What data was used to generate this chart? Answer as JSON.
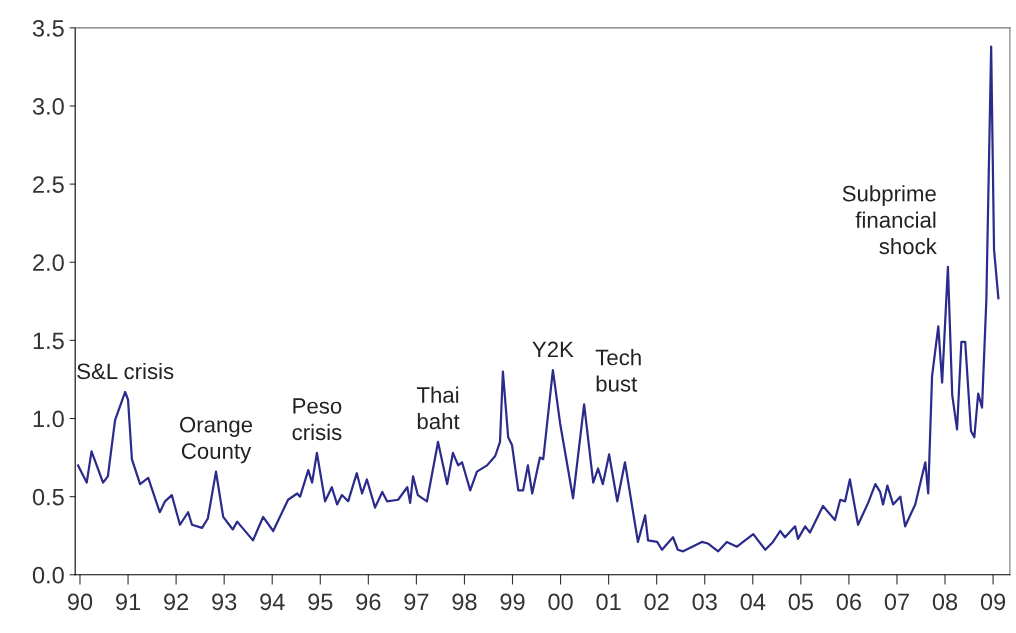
{
  "chart_data": {
    "type": "line",
    "x": [
      1989.96,
      1990.14,
      1990.24,
      1990.48,
      1990.58,
      1990.73,
      1990.94,
      1991.0,
      1991.08,
      1991.25,
      1991.42,
      1991.66,
      1991.77,
      1991.91,
      1992.08,
      1992.25,
      1992.33,
      1992.54,
      1992.66,
      1992.83,
      1992.98,
      1993.18,
      1993.27,
      1993.6,
      1993.81,
      1994.02,
      1994.33,
      1994.52,
      1994.58,
      1994.75,
      1994.83,
      1994.93,
      1995.1,
      1995.24,
      1995.35,
      1995.45,
      1995.58,
      1995.76,
      1995.87,
      1995.97,
      1996.14,
      1996.29,
      1996.39,
      1996.62,
      1996.81,
      1996.87,
      1996.93,
      1997.03,
      1997.22,
      1997.45,
      1997.64,
      1997.76,
      1997.87,
      1997.95,
      1998.12,
      1998.26,
      1998.47,
      1998.64,
      1998.74,
      1998.8,
      1998.91,
      1998.99,
      1999.12,
      1999.22,
      1999.32,
      1999.41,
      1999.57,
      1999.64,
      1999.84,
      1999.99,
      2000.26,
      2000.49,
      2000.68,
      2000.78,
      2000.88,
      2001.01,
      2001.18,
      2001.34,
      2001.61,
      2001.76,
      2001.82,
      2002.01,
      2002.11,
      2002.34,
      2002.44,
      2002.55,
      2002.94,
      2003.07,
      2003.28,
      2003.46,
      2003.67,
      2004.01,
      2004.26,
      2004.42,
      2004.57,
      2004.67,
      2004.88,
      2004.94,
      2005.09,
      2005.19,
      2005.46,
      2005.71,
      2005.82,
      2005.92,
      2006.02,
      2006.19,
      2006.4,
      2006.55,
      2006.65,
      2006.71,
      2006.8,
      2006.92,
      2007.07,
      2007.17,
      2007.38,
      2007.59,
      2007.65,
      2007.73,
      2007.86,
      2007.94,
      2008.06,
      2008.15,
      2008.25,
      2008.34,
      2008.42,
      2008.54,
      2008.61,
      2008.69,
      2008.77,
      2008.86,
      2008.96,
      2009.02,
      2009.11
    ],
    "series": [
      {
        "color": "#2b2b8c",
        "values": [
          0.7,
          0.59,
          0.79,
          0.59,
          0.63,
          0.99,
          1.17,
          1.12,
          0.74,
          0.58,
          0.62,
          0.4,
          0.47,
          0.51,
          0.32,
          0.4,
          0.32,
          0.3,
          0.36,
          0.66,
          0.37,
          0.29,
          0.34,
          0.22,
          0.37,
          0.28,
          0.48,
          0.52,
          0.5,
          0.67,
          0.59,
          0.78,
          0.47,
          0.56,
          0.45,
          0.51,
          0.47,
          0.65,
          0.52,
          0.61,
          0.43,
          0.53,
          0.47,
          0.48,
          0.56,
          0.46,
          0.63,
          0.51,
          0.47,
          0.85,
          0.58,
          0.78,
          0.7,
          0.72,
          0.54,
          0.66,
          0.7,
          0.76,
          0.85,
          1.3,
          0.88,
          0.83,
          0.54,
          0.54,
          0.7,
          0.52,
          0.75,
          0.74,
          1.31,
          0.97,
          0.49,
          1.09,
          0.59,
          0.68,
          0.58,
          0.77,
          0.47,
          0.72,
          0.21,
          0.38,
          0.22,
          0.21,
          0.16,
          0.24,
          0.16,
          0.15,
          0.21,
          0.2,
          0.15,
          0.21,
          0.18,
          0.26,
          0.16,
          0.21,
          0.28,
          0.24,
          0.31,
          0.23,
          0.31,
          0.27,
          0.44,
          0.35,
          0.48,
          0.47,
          0.61,
          0.32,
          0.46,
          0.58,
          0.53,
          0.45,
          0.57,
          0.45,
          0.5,
          0.31,
          0.45,
          0.72,
          0.52,
          1.27,
          1.59,
          1.23,
          1.97,
          1.15,
          0.93,
          1.49,
          1.49,
          0.92,
          0.88,
          1.16,
          1.07,
          1.76,
          3.38,
          2.08,
          1.77
        ]
      }
    ],
    "xlim": [
      1989.9,
      2009.35
    ],
    "xticks": [
      {
        "value": 1990,
        "label": "90"
      },
      {
        "value": 1991,
        "label": "91"
      },
      {
        "value": 1992,
        "label": "92"
      },
      {
        "value": 1993,
        "label": "93"
      },
      {
        "value": 1994,
        "label": "94"
      },
      {
        "value": 1995,
        "label": "95"
      },
      {
        "value": 1996,
        "label": "96"
      },
      {
        "value": 1997,
        "label": "97"
      },
      {
        "value": 1998,
        "label": "98"
      },
      {
        "value": 1999,
        "label": "99"
      },
      {
        "value": 2000,
        "label": "00"
      },
      {
        "value": 2001,
        "label": "01"
      },
      {
        "value": 2002,
        "label": "02"
      },
      {
        "value": 2003,
        "label": "03"
      },
      {
        "value": 2004,
        "label": "04"
      },
      {
        "value": 2005,
        "label": "05"
      },
      {
        "value": 2006,
        "label": "06"
      },
      {
        "value": 2007,
        "label": "07"
      },
      {
        "value": 2008,
        "label": "08"
      },
      {
        "value": 2009,
        "label": "09"
      }
    ],
    "ylim": [
      0,
      3.5
    ],
    "yticks": [
      {
        "value": 0,
        "label": "0.0"
      },
      {
        "value": 0.5,
        "label": "0.5"
      },
      {
        "value": 1,
        "label": "1.0"
      },
      {
        "value": 1.5,
        "label": "1.5"
      },
      {
        "value": 2,
        "label": "2.0"
      },
      {
        "value": 2.5,
        "label": "2.5"
      },
      {
        "value": 3,
        "label": "3.0"
      },
      {
        "value": 3.5,
        "label": "3.5"
      }
    ],
    "grid": false,
    "legend": false,
    "marker": "none",
    "line_style": "solid",
    "annotations": [
      {
        "text": "S&L crisis",
        "x": 1990.94,
        "y": 1.17
      },
      {
        "text": "Orange\nCounty",
        "x": 1992.83,
        "y": 0.66
      },
      {
        "text": "Peso\ncrisis",
        "x": 1994.93,
        "y": 0.78
      },
      {
        "text": "Thai\nbaht",
        "x": 1997.45,
        "y": 0.85
      },
      {
        "text": "Y2K",
        "x": 1999.84,
        "y": 1.31
      },
      {
        "text": "Tech\nbust",
        "x": 2000.49,
        "y": 1.09
      },
      {
        "text": "Subprime\nfinancial\nshock",
        "x": 2008.06,
        "y": 1.97
      }
    ]
  }
}
